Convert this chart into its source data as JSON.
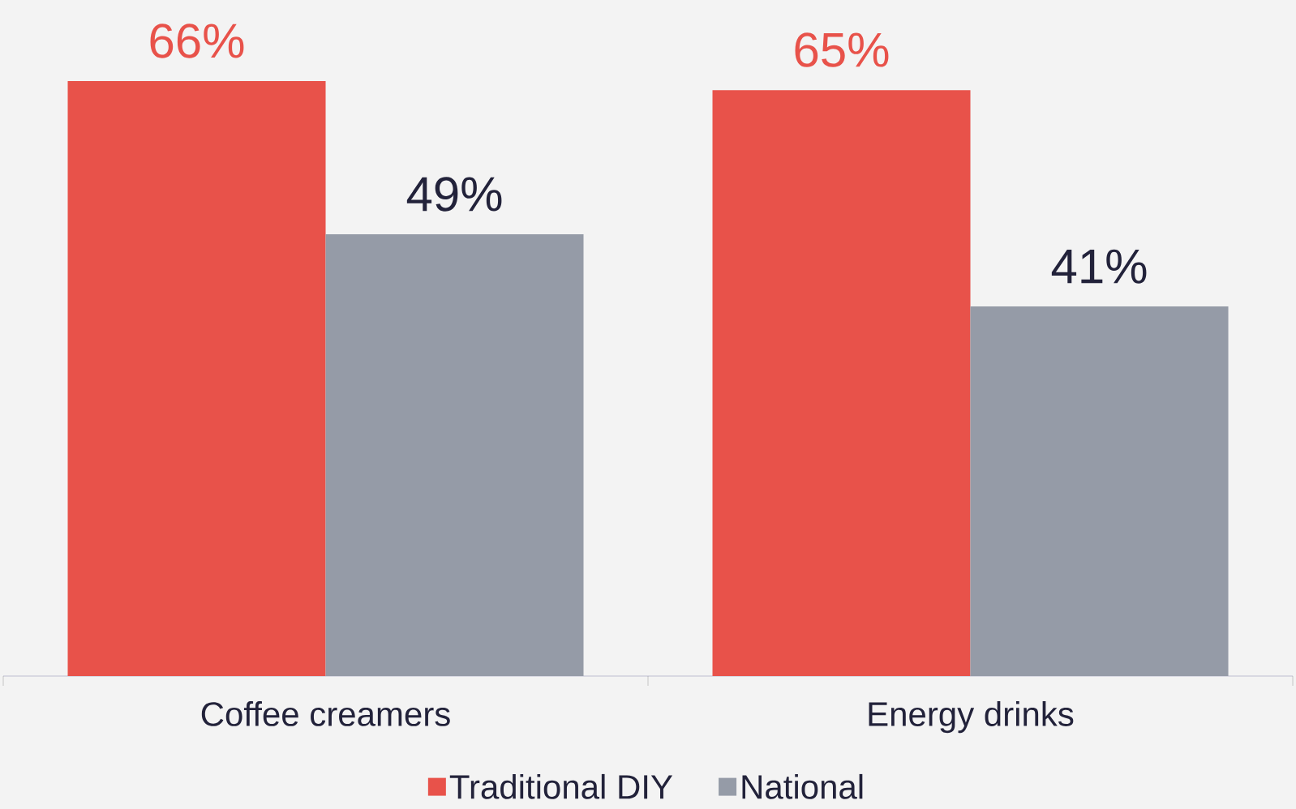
{
  "chart_data": {
    "type": "bar",
    "categories": [
      "Coffee creamers",
      "Energy drinks"
    ],
    "series": [
      {
        "name": "Traditional DIY",
        "color": "#e8524a",
        "values": [
          66,
          65
        ],
        "value_labels": [
          "66%",
          "65%"
        ]
      },
      {
        "name": "National",
        "color": "#959ba7",
        "values": [
          49,
          41
        ],
        "value_labels": [
          "49%",
          "41%"
        ]
      }
    ],
    "ylim": [
      0,
      75
    ],
    "legend": "bottom"
  }
}
